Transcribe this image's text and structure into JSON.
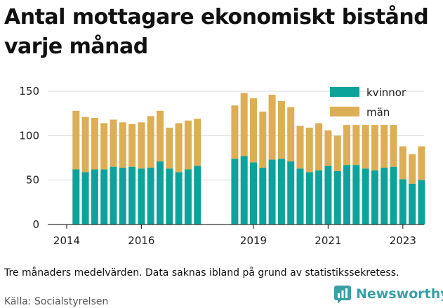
{
  "title": "Antal mottagare ekonomiskt bistånd varje månad",
  "note": "Tre månaders medelvärden. Data saknas ibland på grund av statistikssekretess.",
  "source": "Källa: Socialstyrelsen",
  "logo_text": "Newsworthy",
  "colors": {
    "kvinnor": "#0ea39a",
    "man": "#dcae55",
    "axis": "#333333",
    "grid": "#d9d9d9",
    "logo": "#3a9fa6"
  },
  "chart_data": {
    "type": "bar",
    "stacked": true,
    "x_start": 2014.25,
    "x_step": 0.25,
    "ylim": [
      0,
      150
    ],
    "yticks": [
      "0",
      "50",
      "100",
      "150"
    ],
    "xticks": [
      "2014",
      "2016",
      "2019",
      "2021",
      "2023"
    ],
    "legend_position": "top-right",
    "series": [
      {
        "name": "kvinnor",
        "values": [
          62,
          59,
          62,
          62,
          65,
          64,
          65,
          63,
          64,
          71,
          63,
          59,
          62,
          66,
          null,
          null,
          null,
          74,
          77,
          70,
          64,
          73,
          74,
          71,
          63,
          59,
          61,
          66,
          60,
          67,
          67,
          63,
          61,
          64,
          65,
          51,
          46,
          50
        ]
      },
      {
        "name": "män",
        "values": [
          66,
          62,
          58,
          52,
          53,
          51,
          48,
          52,
          58,
          57,
          46,
          55,
          55,
          53,
          null,
          null,
          null,
          60,
          71,
          72,
          63,
          73,
          65,
          61,
          48,
          50,
          53,
          40,
          40,
          45,
          45,
          49,
          51,
          48,
          47,
          37,
          33,
          38
        ]
      }
    ]
  }
}
